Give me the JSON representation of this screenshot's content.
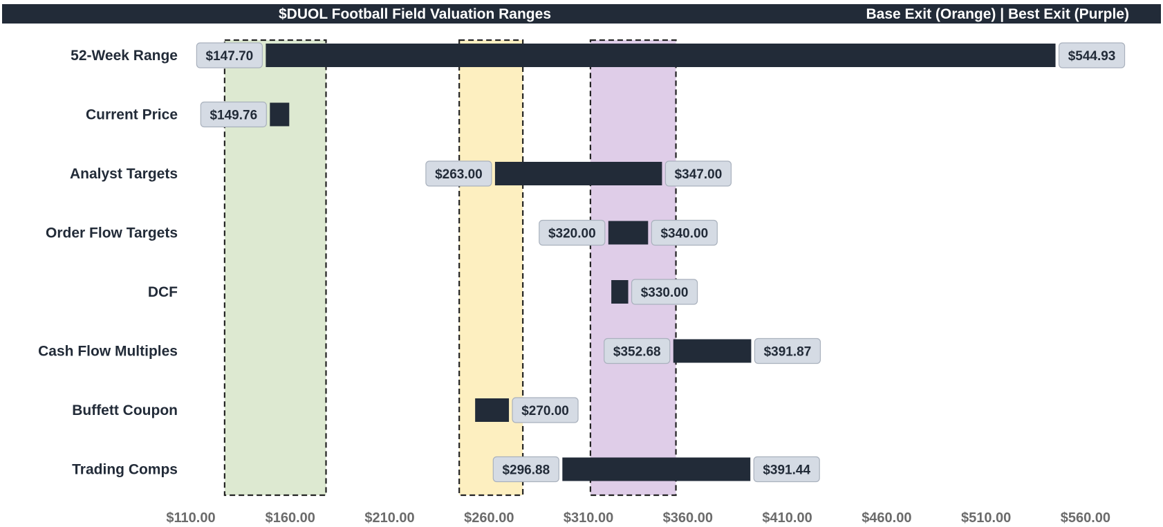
{
  "header": {
    "title": "$DUOL Football Field Valuation Ranges",
    "legend_note": "Base Exit (Orange) | Best Exit (Purple)"
  },
  "colors": {
    "bar": "#222b38",
    "header_bg": "#222b38",
    "label_box_fill": "#d5dbe4",
    "label_box_stroke": "#a9b1bd",
    "zone_green": "#dde9d1",
    "zone_orange": "#fdefc0",
    "zone_purple": "#dfcde8",
    "tick_text": "#6b6b6b"
  },
  "chart_data": {
    "type": "bar",
    "orientation": "horizontal-range",
    "title": "$DUOL Football Field Valuation Ranges",
    "xlim": [
      110,
      575
    ],
    "xticks": [
      110,
      160,
      210,
      260,
      310,
      360,
      410,
      460,
      510,
      560
    ],
    "xtick_labels": [
      "$110.00",
      "$160.00",
      "$210.00",
      "$260.00",
      "$310.00",
      "$360.00",
      "$410.00",
      "$460.00",
      "$510.00",
      "$560.00"
    ],
    "grid": false,
    "categories": [
      "52-Week Range",
      "Current Price",
      "Analyst Targets",
      "Order Flow Targets",
      "DCF",
      "Cash Flow Multiples",
      "Buffett Coupon",
      "Trading Comps"
    ],
    "ranges": [
      {
        "category": "52-Week Range",
        "low": 147.7,
        "high": 544.93,
        "low_label": "$147.70",
        "high_label": "$544.93"
      },
      {
        "category": "Current Price",
        "low": 149.76,
        "high": 159.5,
        "low_label": "$149.76",
        "high_label": ""
      },
      {
        "category": "Analyst Targets",
        "low": 263.0,
        "high": 347.0,
        "low_label": "$263.00",
        "high_label": "$347.00"
      },
      {
        "category": "Order Flow Targets",
        "low": 320.0,
        "high": 340.0,
        "low_label": "$320.00",
        "high_label": "$340.00"
      },
      {
        "category": "DCF",
        "low": 321.5,
        "high": 330.0,
        "low_label": "",
        "high_label": "$330.00"
      },
      {
        "category": "Cash Flow Multiples",
        "low": 352.68,
        "high": 391.87,
        "low_label": "$352.68",
        "high_label": "$391.87"
      },
      {
        "category": "Buffett Coupon",
        "low": 253.0,
        "high": 270.0,
        "low_label": "",
        "high_label": "$270.00"
      },
      {
        "category": "Trading Comps",
        "low": 296.88,
        "high": 391.44,
        "low_label": "$296.88",
        "high_label": "$391.44"
      }
    ],
    "zones": [
      {
        "color": "green",
        "low": 127,
        "high": 178
      },
      {
        "color": "orange",
        "low": 245,
        "high": 277
      },
      {
        "color": "purple",
        "low": 311,
        "high": 354
      }
    ]
  }
}
